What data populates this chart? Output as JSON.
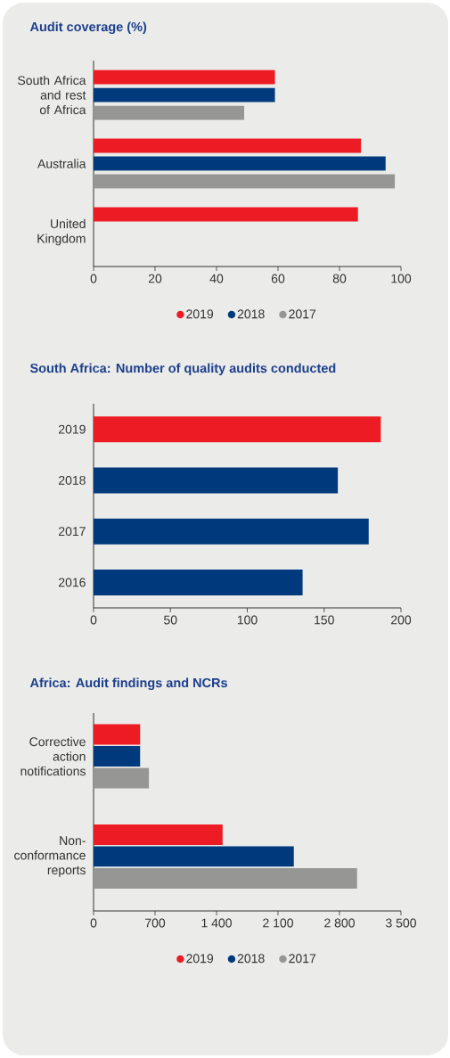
{
  "chart_data": [
    {
      "type": "bar",
      "orientation": "horizontal",
      "title": "Audit coverage (%)",
      "categories": [
        "South Africa and rest of Africa",
        "Australia",
        "United Kingdom"
      ],
      "series": [
        {
          "name": "2019",
          "color": "#ed1c24",
          "values": [
            59,
            87,
            86
          ]
        },
        {
          "name": "2018",
          "color": "#003a7d",
          "values": [
            59,
            95,
            null
          ]
        },
        {
          "name": "2017",
          "color": "#969794",
          "values": [
            49,
            98,
            null
          ]
        }
      ],
      "xlim": [
        0,
        100
      ],
      "xticks": [
        0,
        20,
        40,
        60,
        80,
        100
      ],
      "legend": "bottom"
    },
    {
      "type": "bar",
      "orientation": "horizontal",
      "title": "South Africa: Number of quality audits conducted",
      "categories": [
        "2019",
        "2018",
        "2017",
        "2016"
      ],
      "values": [
        187,
        159,
        179,
        136
      ],
      "colors": [
        "#ed1c24",
        "#003a7d",
        "#003a7d",
        "#003a7d"
      ],
      "xlim": [
        0,
        200
      ],
      "xticks": [
        0,
        50,
        100,
        150,
        200
      ]
    },
    {
      "type": "bar",
      "orientation": "horizontal",
      "title": "Africa: Audit findings and NCRs",
      "categories": [
        "Corrective action notifications",
        "Non-conformance reports"
      ],
      "series": [
        {
          "name": "2019",
          "color": "#ed1c24",
          "values": [
            530,
            1470
          ]
        },
        {
          "name": "2018",
          "color": "#003a7d",
          "values": [
            530,
            2280
          ]
        },
        {
          "name": "2017",
          "color": "#969794",
          "values": [
            630,
            3000
          ]
        }
      ],
      "xlim": [
        0,
        3500
      ],
      "xticks": [
        0,
        {
          "value": 700,
          "label": "700"
        },
        {
          "value": 1400,
          "label": "1 400"
        },
        {
          "value": 2100,
          "label": "2 100"
        },
        {
          "value": 2800,
          "label": "2 800"
        },
        {
          "value": 3500,
          "label": "3 500"
        }
      ],
      "legend": "bottom"
    }
  ]
}
